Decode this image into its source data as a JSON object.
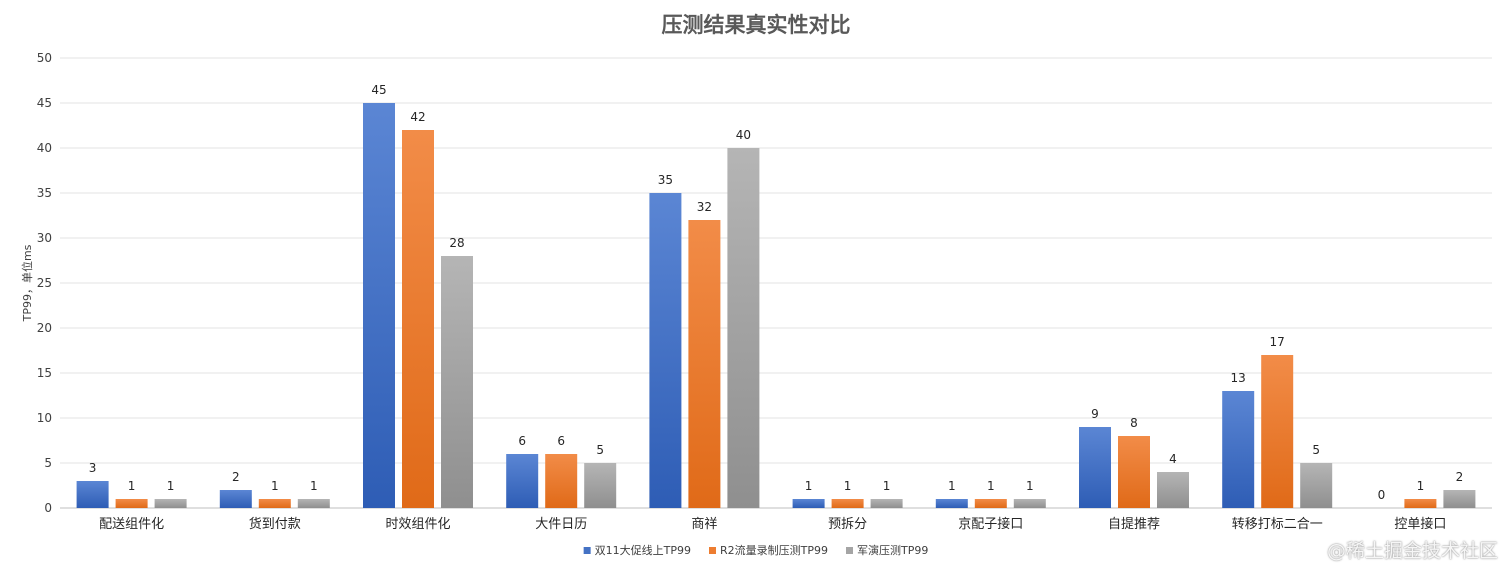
{
  "chart_data": {
    "type": "bar",
    "title": "压测结果真实性对比",
    "ylabel": "TP99，单位ms",
    "xlabel": "",
    "ylim": [
      0,
      50
    ],
    "yticks": [
      0,
      5,
      10,
      15,
      20,
      25,
      30,
      35,
      40,
      45,
      50
    ],
    "grid": true,
    "legend_position": "bottom",
    "categories": [
      "配送组件化",
      "货到付款",
      "时效组件化",
      "大件日历",
      "商祥",
      "预拆分",
      "京配子接口",
      "自提推荐",
      "转移打标二合一",
      "控单接口"
    ],
    "series": [
      {
        "name": "双11大促线上TP99",
        "color": "#4472C4",
        "values": [
          3,
          2,
          45,
          6,
          35,
          1,
          1,
          9,
          13,
          0
        ]
      },
      {
        "name": "R2流量录制压测TP99",
        "color": "#ED7D31",
        "values": [
          1,
          1,
          42,
          6,
          32,
          1,
          1,
          8,
          17,
          1
        ]
      },
      {
        "name": "军演压测TP99",
        "color": "#A5A5A5",
        "values": [
          1,
          1,
          28,
          5,
          40,
          1,
          1,
          4,
          5,
          2
        ]
      }
    ]
  },
  "watermark": "@稀土掘金技术社区"
}
